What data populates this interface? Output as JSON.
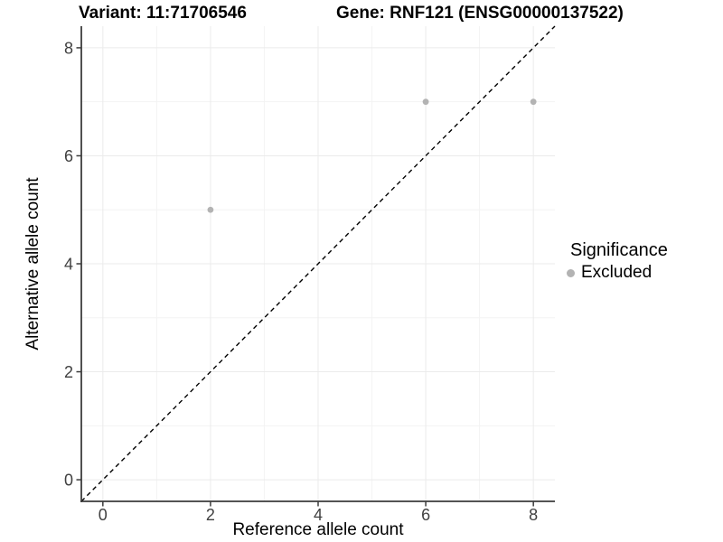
{
  "titles": {
    "variant": "Variant: 11:71706546",
    "gene": "Gene: RNF121 (ENSG00000137522)"
  },
  "chart_data": {
    "type": "scatter",
    "xlabel": "Reference allele count",
    "ylabel": "Alternative allele count",
    "xlim": [
      -0.4,
      8.4
    ],
    "ylim": [
      -0.4,
      8.4
    ],
    "xticks": [
      0,
      2,
      4,
      6,
      8
    ],
    "yticks": [
      0,
      2,
      4,
      6,
      8
    ],
    "xticks_minor": [
      1,
      3,
      5,
      7
    ],
    "yticks_minor": [
      1,
      3,
      5,
      7
    ],
    "grid": true,
    "series": [
      {
        "name": "Excluded",
        "color": "#b3b3b3",
        "points": [
          [
            2,
            5
          ],
          [
            6,
            7
          ],
          [
            8,
            7
          ]
        ]
      }
    ],
    "reference_line": {
      "type": "identity",
      "slope": 1,
      "intercept": 0,
      "style": "dashed",
      "color": "#000000"
    },
    "legend": {
      "title": "Significance",
      "position": "right",
      "items": [
        {
          "label": "Excluded",
          "color": "#b3b3b3",
          "marker": "circle"
        }
      ]
    },
    "colors": {
      "grid_major": "#ebebeb",
      "grid_minor": "#f3f3f3",
      "axis_line": "#3c3c3c",
      "tick_label": "#404040",
      "point": "#b3b3b3"
    }
  }
}
